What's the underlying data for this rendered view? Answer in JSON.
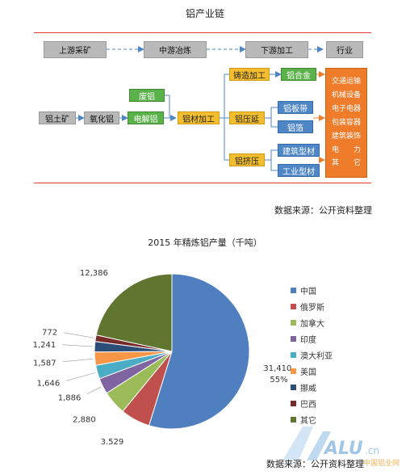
{
  "flow": {
    "title": "铝产业链",
    "source": "数据来源：公开资料整理",
    "stages": [
      "上游采矿",
      "中游冶炼",
      "下游加工",
      "行业"
    ],
    "boxes": {
      "bauxite": "铝土矿",
      "alumina": "氧化铝",
      "scrap": "废铝",
      "electrolytic": "电解铝",
      "processing": "铝材加工",
      "casting": "铸造加工",
      "rolling": "铝压延",
      "extrusion": "铝挤压",
      "alloy": "铝合金",
      "strip": "铝板带",
      "foil": "铝箔",
      "building_profile": "建筑型材",
      "industrial_profile": "工业型材"
    },
    "industries": [
      "交通运输",
      "机械设备",
      "电子电器",
      "包装容器",
      "建筑装饰",
      "电　　力",
      "其　　它"
    ]
  },
  "chart_data": {
    "type": "pie",
    "title": "2015 年精炼铝产量（千吨）",
    "source": "数据来源：公开资料整理",
    "series": [
      {
        "name": "中国",
        "value": 31410,
        "label": "31,410,",
        "pct_label": "55%",
        "color": "#4f7fbf"
      },
      {
        "name": "俄罗斯",
        "value": 3529,
        "label": "3,529",
        "color": "#c0504d"
      },
      {
        "name": "加拿大",
        "value": 2880,
        "label": "2,880",
        "color": "#9bbb59"
      },
      {
        "name": "印度",
        "value": 1886,
        "label": "1,886",
        "color": "#8064a2"
      },
      {
        "name": "澳大利亚",
        "value": 1646,
        "label": "1,646",
        "color": "#4bacc6"
      },
      {
        "name": "美国",
        "value": 1587,
        "label": "1,587",
        "color": "#f79646"
      },
      {
        "name": "挪威",
        "value": 1241,
        "label": "1,241",
        "color": "#2c4d75"
      },
      {
        "name": "巴西",
        "value": 772,
        "label": "772",
        "color": "#772c2a"
      },
      {
        "name": "其它",
        "value": 12386,
        "label": "12,386",
        "color": "#5f7530"
      }
    ],
    "legend_position": "right"
  },
  "watermark": {
    "text": "ALU.cn",
    "sub": "中国铝业网"
  }
}
